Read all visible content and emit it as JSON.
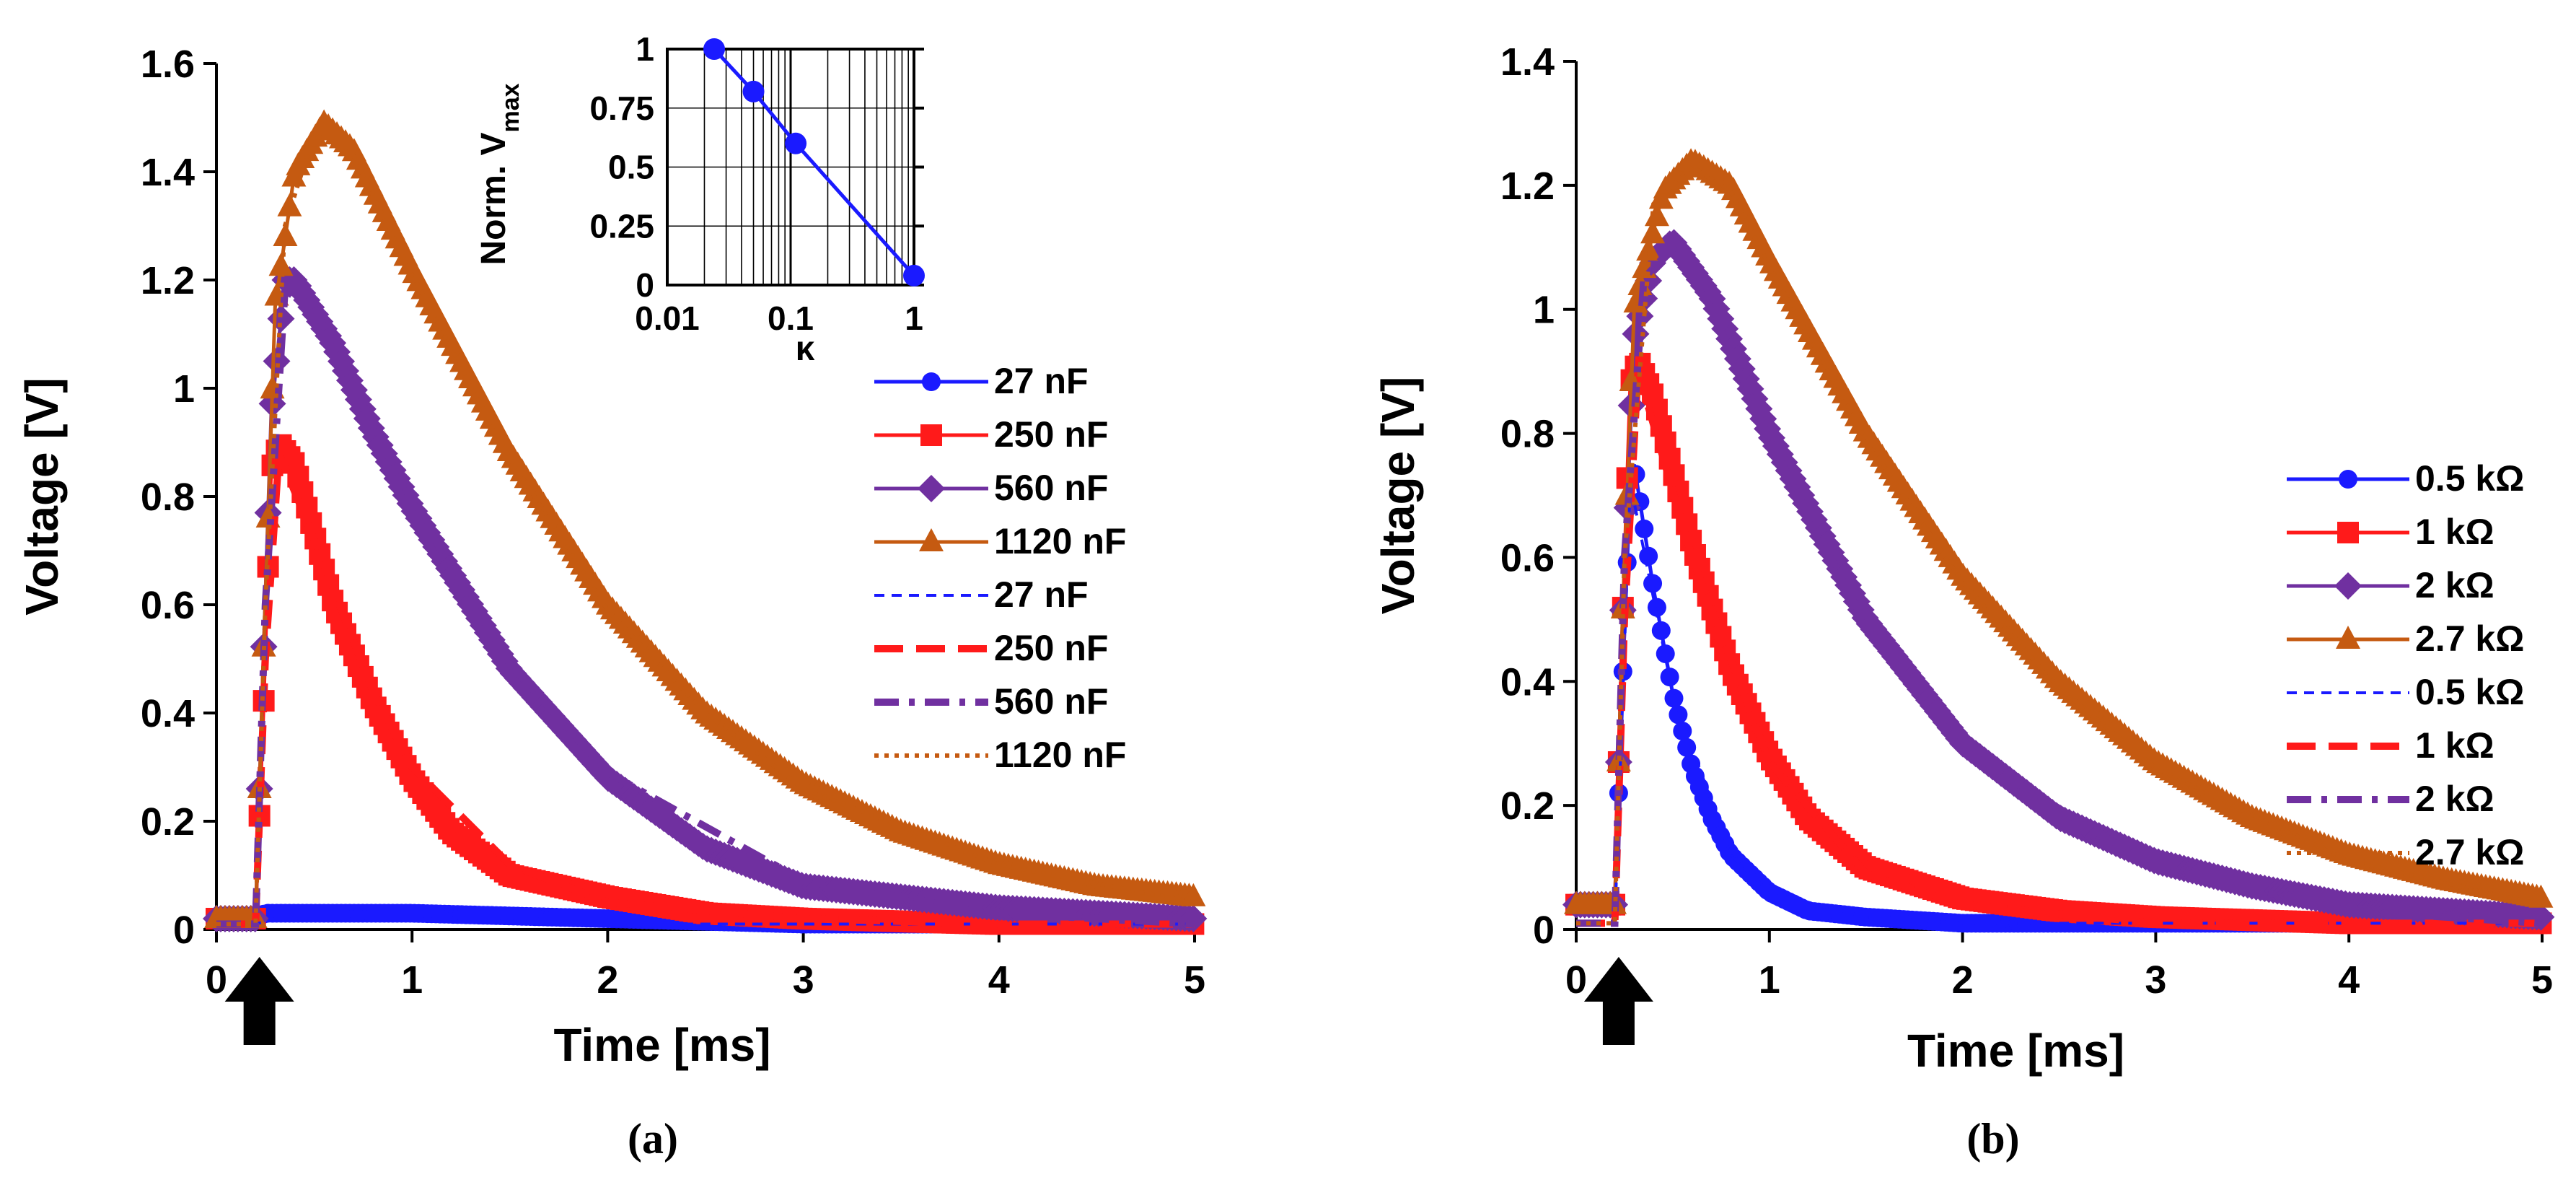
{
  "colors": {
    "blue": "#1a1aff",
    "red": "#ff1a1a",
    "purple": "#7030a0",
    "orange": "#c55a11",
    "axis": "#000000"
  },
  "chart_data": [
    {
      "id": "a",
      "type": "scatter",
      "caption": "(a)",
      "xlabel": "Time [ms]",
      "ylabel": "Voltage [V]",
      "xlim": [
        0,
        5
      ],
      "ylim": [
        0,
        1.6
      ],
      "xticks": [
        "0",
        "1",
        "2",
        "3",
        "4",
        "5"
      ],
      "yticks": [
        "0",
        "0.2",
        "0.4",
        "0.6",
        "0.8",
        "1",
        "1.2",
        "1.4",
        "1.6"
      ],
      "series": [
        {
          "name": "27 nF",
          "style": "markers",
          "color_key": "blue",
          "marker": "circle",
          "x": [
            0,
            0.2,
            0.25,
            0.3,
            0.5,
            1,
            2,
            3,
            4,
            5
          ],
          "y": [
            0.02,
            0.02,
            0.03,
            0.03,
            0.03,
            0.03,
            0.02,
            0.01,
            0.01,
            0.01
          ]
        },
        {
          "name": "250 nF",
          "style": "markers",
          "color_key": "red",
          "marker": "square",
          "x": [
            0,
            0.2,
            0.24,
            0.28,
            0.32,
            0.4,
            0.6,
            0.8,
            1,
            1.2,
            1.5,
            2,
            2.5,
            3,
            4,
            5
          ],
          "y": [
            0.02,
            0.02,
            0.4,
            0.85,
            0.9,
            0.86,
            0.6,
            0.42,
            0.28,
            0.18,
            0.1,
            0.06,
            0.03,
            0.02,
            0.01,
            0.01
          ]
        },
        {
          "name": "560 nF",
          "style": "markers",
          "color_key": "purple",
          "marker": "diamond",
          "x": [
            0,
            0.2,
            0.24,
            0.28,
            0.35,
            0.4,
            0.6,
            0.8,
            1,
            1.5,
            2,
            2.5,
            3,
            4,
            5
          ],
          "y": [
            0.02,
            0.02,
            0.5,
            0.95,
            1.2,
            1.2,
            1.08,
            0.92,
            0.78,
            0.48,
            0.28,
            0.15,
            0.08,
            0.04,
            0.02
          ]
        },
        {
          "name": "1120 nF",
          "style": "markers",
          "color_key": "orange",
          "marker": "triangle",
          "x": [
            0,
            0.2,
            0.24,
            0.3,
            0.4,
            0.55,
            0.7,
            1,
            1.5,
            2,
            2.5,
            3,
            3.5,
            4,
            4.5,
            5
          ],
          "y": [
            0.02,
            0.02,
            0.5,
            1.15,
            1.4,
            1.49,
            1.44,
            1.22,
            0.88,
            0.6,
            0.4,
            0.27,
            0.18,
            0.12,
            0.08,
            0.06
          ]
        },
        {
          "name": "27 nF",
          "style": "short-dash",
          "color_key": "blue",
          "x": [
            0,
            0.2,
            0.3,
            1,
            2,
            3,
            4,
            5
          ],
          "y": [
            0.01,
            0.01,
            0.02,
            0.02,
            0.01,
            0.01,
            0.01,
            0.01
          ]
        },
        {
          "name": "250 nF",
          "style": "long-dash",
          "color_key": "red",
          "x": [
            0,
            0.2,
            0.25,
            0.32,
            0.5,
            0.8,
            1,
            1.5,
            2,
            3,
            4,
            5
          ],
          "y": [
            0.01,
            0.01,
            0.5,
            0.88,
            0.72,
            0.44,
            0.3,
            0.12,
            0.05,
            0.02,
            0.01,
            0.01
          ]
        },
        {
          "name": "560 nF",
          "style": "dash-dot",
          "color_key": "purple",
          "x": [
            0,
            0.2,
            0.25,
            0.35,
            0.5,
            0.8,
            1,
            1.5,
            2,
            3,
            4,
            5
          ],
          "y": [
            0.01,
            0.01,
            0.6,
            1.18,
            1.15,
            0.93,
            0.79,
            0.49,
            0.29,
            0.09,
            0.03,
            0.01
          ]
        },
        {
          "name": "1120 nF",
          "style": "dotted",
          "color_key": "orange",
          "x": [
            0,
            0.2,
            0.25,
            0.35,
            0.5,
            0.7,
            1,
            1.5,
            2,
            2.5,
            3,
            4,
            5
          ],
          "y": [
            0.01,
            0.01,
            0.6,
            1.3,
            1.47,
            1.43,
            1.21,
            0.87,
            0.59,
            0.4,
            0.26,
            0.12,
            0.05
          ]
        }
      ],
      "inset": {
        "xlabel": "κ",
        "ylabel": "Norm. V",
        "ylabel_sub": "max",
        "xlim": [
          0.01,
          1
        ],
        "ylim": [
          0,
          1
        ],
        "xticks": [
          "0.01",
          "0.1",
          "1"
        ],
        "yticks": [
          "0",
          "0.25",
          "0.5",
          "0.75",
          "1"
        ],
        "x": [
          0.024,
          0.05,
          0.11,
          1
        ],
        "y": [
          1,
          0.82,
          0.6,
          0.04
        ]
      }
    },
    {
      "id": "b",
      "type": "scatter",
      "caption": "(b)",
      "xlabel": "Time  [ms]",
      "ylabel": "Voltage [V]",
      "xlim": [
        0,
        5
      ],
      "ylim": [
        0,
        1.4
      ],
      "xticks": [
        "0",
        "1",
        "2",
        "3",
        "4",
        "5"
      ],
      "yticks": [
        "0",
        "0.2",
        "0.4",
        "0.6",
        "0.8",
        "1",
        "1.2",
        "1.4"
      ],
      "series": [
        {
          "name": "0.5 kΩ",
          "style": "markers",
          "color_key": "blue",
          "marker": "circle",
          "x": [
            0,
            0.2,
            0.24,
            0.28,
            0.3,
            0.4,
            0.5,
            0.6,
            0.7,
            0.8,
            1,
            1.2,
            1.5,
            2,
            3,
            5
          ],
          "y": [
            0.04,
            0.04,
            0.4,
            0.72,
            0.75,
            0.55,
            0.38,
            0.26,
            0.18,
            0.12,
            0.06,
            0.03,
            0.02,
            0.01,
            0.01,
            0.01
          ]
        },
        {
          "name": "1 kΩ",
          "style": "markers",
          "color_key": "red",
          "marker": "square",
          "x": [
            0,
            0.2,
            0.24,
            0.28,
            0.32,
            0.4,
            0.6,
            0.8,
            1,
            1.2,
            1.5,
            2,
            2.5,
            3,
            4,
            5
          ],
          "y": [
            0.04,
            0.04,
            0.5,
            0.88,
            0.92,
            0.86,
            0.62,
            0.42,
            0.28,
            0.18,
            0.1,
            0.05,
            0.03,
            0.02,
            0.01,
            0.01
          ]
        },
        {
          "name": "2 kΩ",
          "style": "markers",
          "color_key": "purple",
          "marker": "diamond",
          "x": [
            0,
            0.2,
            0.24,
            0.3,
            0.4,
            0.5,
            0.7,
            1,
            1.5,
            2,
            2.5,
            3,
            3.5,
            4,
            5
          ],
          "y": [
            0.04,
            0.04,
            0.5,
            0.95,
            1.08,
            1.11,
            1.02,
            0.8,
            0.5,
            0.3,
            0.18,
            0.11,
            0.07,
            0.04,
            0.02
          ]
        },
        {
          "name": "2.7 kΩ",
          "style": "markers",
          "color_key": "orange",
          "marker": "triangle",
          "x": [
            0,
            0.2,
            0.24,
            0.3,
            0.45,
            0.6,
            0.8,
            1,
            1.5,
            2,
            2.5,
            3,
            3.5,
            4,
            4.5,
            5
          ],
          "y": [
            0.04,
            0.04,
            0.5,
            1.0,
            1.19,
            1.24,
            1.2,
            1.08,
            0.8,
            0.57,
            0.4,
            0.27,
            0.18,
            0.12,
            0.08,
            0.05
          ]
        },
        {
          "name": "0.5 kΩ",
          "style": "short-dash",
          "color_key": "blue",
          "x": [
            0,
            0.2,
            0.28,
            0.5,
            0.8,
            1,
            1.5,
            2,
            3,
            5
          ],
          "y": [
            0.01,
            0.01,
            0.72,
            0.38,
            0.12,
            0.06,
            0.02,
            0.01,
            0.01,
            0.01
          ]
        },
        {
          "name": "1 kΩ",
          "style": "long-dash",
          "color_key": "red",
          "x": [
            0,
            0.2,
            0.25,
            0.32,
            0.6,
            1,
            1.5,
            2,
            3,
            4,
            5
          ],
          "y": [
            0.01,
            0.01,
            0.5,
            0.9,
            0.6,
            0.27,
            0.09,
            0.04,
            0.01,
            0.01,
            0.01
          ]
        },
        {
          "name": "2 kΩ",
          "style": "dash-dot",
          "color_key": "purple",
          "x": [
            0,
            0.2,
            0.25,
            0.35,
            0.5,
            0.7,
            1,
            1.5,
            2,
            3,
            4,
            5
          ],
          "y": [
            0.01,
            0.01,
            0.6,
            1.05,
            1.1,
            1.0,
            0.79,
            0.49,
            0.29,
            0.1,
            0.03,
            0.01
          ]
        },
        {
          "name": "2.7 kΩ",
          "style": "dotted",
          "color_key": "orange",
          "x": [
            0,
            0.2,
            0.25,
            0.4,
            0.6,
            0.8,
            1,
            1.5,
            2,
            2.5,
            3,
            4,
            5
          ],
          "y": [
            0.01,
            0.01,
            0.6,
            1.17,
            1.23,
            1.19,
            1.07,
            0.79,
            0.56,
            0.39,
            0.26,
            0.11,
            0.04
          ]
        }
      ]
    }
  ]
}
